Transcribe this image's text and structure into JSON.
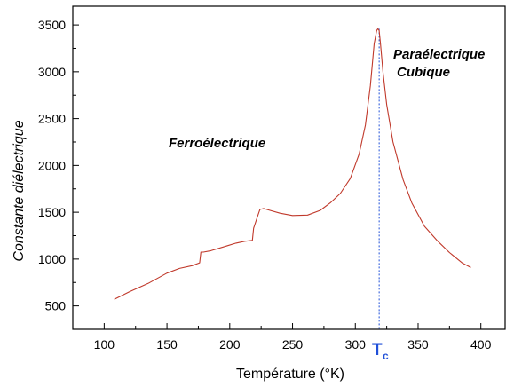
{
  "chart_data": {
    "type": "line",
    "xlabel": "Température (°K)",
    "ylabel": "Constante diélectrique",
    "xlim": [
      75,
      420
    ],
    "ylim": [
      250,
      3700
    ],
    "x_ticks": [
      100,
      150,
      200,
      250,
      300,
      350,
      400
    ],
    "y_ticks": [
      500,
      1000,
      1500,
      2000,
      2500,
      3000,
      3500
    ],
    "grid": false,
    "series": [
      {
        "color": "#c0392b",
        "x": [
          108,
          120,
          135,
          150,
          160,
          170,
          176,
          177,
          179,
          185,
          195,
          205,
          212,
          218,
          219,
          222,
          224,
          227,
          232,
          240,
          250,
          262,
          272,
          280,
          288,
          296,
          303,
          308,
          312,
          315,
          317,
          318,
          319,
          320,
          322,
          325,
          330,
          338,
          345,
          355,
          365,
          375,
          385,
          392
        ],
        "y": [
          570,
          650,
          740,
          850,
          900,
          930,
          960,
          1075,
          1075,
          1090,
          1130,
          1170,
          1190,
          1200,
          1330,
          1450,
          1530,
          1540,
          1520,
          1490,
          1465,
          1470,
          1520,
          1600,
          1700,
          1860,
          2120,
          2430,
          2850,
          3300,
          3440,
          3460,
          3440,
          3300,
          3000,
          2650,
          2250,
          1850,
          1600,
          1350,
          1200,
          1070,
          960,
          910
        ]
      }
    ],
    "annotations": {
      "ferro": "Ferroélectrique",
      "para_1": "Paraélectrique",
      "para_2": "Cubique",
      "tc_main": "T",
      "tc_sub": "c"
    },
    "tc_marker": {
      "x": 319,
      "color": "#1f4fd8"
    }
  }
}
